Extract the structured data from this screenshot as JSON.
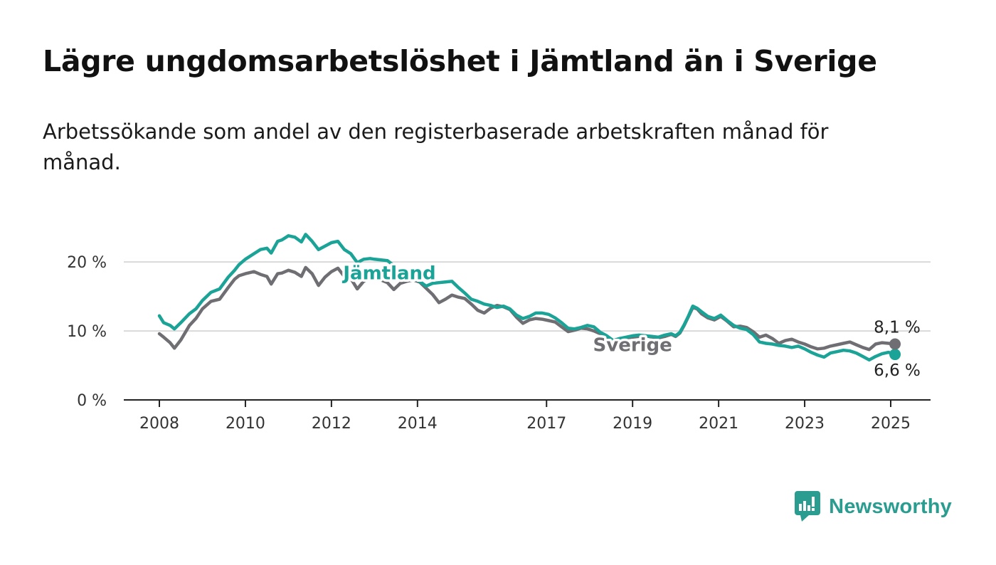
{
  "title": "Lägre ungdomsarbetslöshet i Jämtland än i Sverige",
  "subtitle": "Arbetssökande som andel av den registerbaserade arbetskraften månad för månad.",
  "brand": {
    "name": "Newsworthy",
    "icon": "newsworthy-logo-icon",
    "color": "#2a9d90"
  },
  "colors": {
    "jamtland": "#1aa396",
    "sverige": "#6f6e73",
    "grid": "#d9d9d9",
    "axis": "#222222"
  },
  "chart_data": {
    "type": "line",
    "ylim": [
      0,
      26
    ],
    "xlim": [
      2007.6,
      2025.9
    ],
    "y_ticks": [
      0,
      10,
      20
    ],
    "y_tick_labels": [
      "0 %",
      "10 %",
      "20 %"
    ],
    "x_ticks": [
      2008,
      2010,
      2012,
      2014,
      2017,
      2019,
      2021,
      2023,
      2025
    ],
    "x_tick_labels": [
      "2008",
      "2010",
      "2012",
      "2014",
      "2017",
      "2019",
      "2021",
      "2023",
      "2025"
    ],
    "series": [
      {
        "name": "Jämtland",
        "color": "#1aa396",
        "end_label": "6,6 %",
        "x": [
          2008.0,
          2008.1,
          2008.25,
          2008.35,
          2008.5,
          2008.7,
          2008.85,
          2009.0,
          2009.2,
          2009.4,
          2009.6,
          2009.75,
          2009.85,
          2010.0,
          2010.2,
          2010.35,
          2010.5,
          2010.6,
          2010.75,
          2010.85,
          2011.0,
          2011.15,
          2011.3,
          2011.4,
          2011.55,
          2011.7,
          2011.85,
          2012.0,
          2012.15,
          2012.3,
          2012.45,
          2012.6,
          2012.75,
          2012.9,
          2013.0,
          2013.15,
          2013.3,
          2013.45,
          2013.6,
          2013.75,
          2013.9,
          2014.05,
          2014.2,
          2014.35,
          2014.5,
          2014.65,
          2014.8,
          2014.95,
          2015.1,
          2015.25,
          2015.4,
          2015.55,
          2015.7,
          2015.85,
          2016.0,
          2016.15,
          2016.3,
          2016.45,
          2016.6,
          2016.75,
          2016.9,
          2017.05,
          2017.2,
          2017.35,
          2017.5,
          2017.65,
          2017.8,
          2017.95,
          2018.1,
          2018.25,
          2018.4,
          2018.55,
          2018.7,
          2018.85,
          2019.0,
          2019.15,
          2019.3,
          2019.45,
          2019.6,
          2019.75,
          2019.9,
          2020.0,
          2020.1,
          2020.2,
          2020.3,
          2020.4,
          2020.5,
          2020.6,
          2020.75,
          2020.9,
          2021.05,
          2021.2,
          2021.35,
          2021.5,
          2021.65,
          2021.8,
          2021.95,
          2022.1,
          2022.25,
          2022.4,
          2022.55,
          2022.7,
          2022.85,
          2023.0,
          2023.15,
          2023.3,
          2023.45,
          2023.6,
          2023.75,
          2023.9,
          2024.05,
          2024.2,
          2024.35,
          2024.5,
          2024.65,
          2024.8,
          2024.95,
          2025.1
        ],
        "y": [
          12.2,
          11.2,
          10.8,
          10.3,
          11.2,
          12.5,
          13.2,
          14.4,
          15.6,
          16.1,
          17.8,
          18.8,
          19.6,
          20.4,
          21.2,
          21.8,
          22.0,
          21.3,
          23.0,
          23.2,
          23.8,
          23.6,
          22.9,
          24.0,
          23.0,
          21.8,
          22.3,
          22.8,
          23.0,
          21.8,
          21.2,
          19.9,
          20.4,
          20.5,
          20.4,
          20.3,
          20.2,
          19.5,
          18.4,
          18.0,
          17.6,
          17.2,
          16.5,
          16.9,
          17.0,
          17.1,
          17.2,
          16.3,
          15.5,
          14.6,
          14.3,
          13.9,
          13.7,
          13.4,
          13.6,
          13.2,
          12.3,
          11.8,
          12.1,
          12.6,
          12.6,
          12.4,
          11.9,
          11.2,
          10.4,
          10.3,
          10.5,
          10.8,
          10.6,
          9.8,
          9.3,
          8.6,
          8.9,
          9.1,
          9.3,
          9.4,
          9.3,
          9.2,
          9.1,
          9.4,
          9.6,
          9.3,
          9.8,
          10.9,
          12.2,
          13.6,
          13.3,
          12.8,
          12.1,
          11.8,
          12.3,
          11.5,
          10.8,
          10.4,
          10.2,
          9.5,
          8.4,
          8.2,
          8.1,
          7.9,
          7.8,
          7.6,
          7.8,
          7.4,
          6.9,
          6.5,
          6.2,
          6.8,
          7.0,
          7.2,
          7.1,
          6.8,
          6.3,
          5.8,
          6.3,
          6.7,
          6.9,
          6.6
        ]
      },
      {
        "name": "Sverige",
        "color": "#6f6e73",
        "end_label": "8,1 %",
        "x": [
          2008.0,
          2008.1,
          2008.25,
          2008.35,
          2008.5,
          2008.7,
          2008.85,
          2009.0,
          2009.2,
          2009.4,
          2009.6,
          2009.75,
          2009.85,
          2010.0,
          2010.2,
          2010.35,
          2010.5,
          2010.6,
          2010.75,
          2010.85,
          2011.0,
          2011.15,
          2011.3,
          2011.4,
          2011.55,
          2011.7,
          2011.85,
          2012.0,
          2012.15,
          2012.3,
          2012.45,
          2012.6,
          2012.75,
          2012.9,
          2013.0,
          2013.15,
          2013.3,
          2013.45,
          2013.6,
          2013.75,
          2013.9,
          2014.05,
          2014.2,
          2014.35,
          2014.5,
          2014.65,
          2014.8,
          2014.95,
          2015.1,
          2015.25,
          2015.4,
          2015.55,
          2015.7,
          2015.85,
          2016.0,
          2016.15,
          2016.3,
          2016.45,
          2016.6,
          2016.75,
          2016.9,
          2017.05,
          2017.2,
          2017.35,
          2017.5,
          2017.65,
          2017.8,
          2017.95,
          2018.1,
          2018.25,
          2018.4,
          2018.55,
          2018.7,
          2018.85,
          2019.0,
          2019.15,
          2019.3,
          2019.45,
          2019.6,
          2019.75,
          2019.9,
          2020.0,
          2020.1,
          2020.2,
          2020.3,
          2020.4,
          2020.5,
          2020.6,
          2020.75,
          2020.9,
          2021.05,
          2021.2,
          2021.35,
          2021.5,
          2021.65,
          2021.8,
          2021.95,
          2022.1,
          2022.25,
          2022.4,
          2022.55,
          2022.7,
          2022.85,
          2023.0,
          2023.15,
          2023.3,
          2023.45,
          2023.6,
          2023.75,
          2023.9,
          2024.05,
          2024.2,
          2024.35,
          2024.5,
          2024.65,
          2024.8,
          2024.95,
          2025.1
        ],
        "y": [
          9.6,
          9.1,
          8.3,
          7.5,
          8.7,
          10.8,
          11.8,
          13.2,
          14.3,
          14.6,
          16.3,
          17.5,
          18.0,
          18.3,
          18.6,
          18.2,
          17.9,
          16.8,
          18.3,
          18.4,
          18.8,
          18.5,
          17.9,
          19.2,
          18.3,
          16.6,
          17.8,
          18.6,
          19.1,
          17.9,
          17.6,
          16.1,
          17.2,
          17.7,
          17.6,
          17.4,
          17.0,
          16.0,
          16.9,
          17.2,
          17.4,
          17.1,
          16.2,
          15.3,
          14.1,
          14.6,
          15.2,
          14.9,
          14.7,
          13.9,
          13.0,
          12.6,
          13.3,
          13.7,
          13.5,
          13.1,
          12.0,
          11.1,
          11.6,
          11.8,
          11.7,
          11.5,
          11.3,
          10.6,
          9.9,
          10.1,
          10.4,
          10.3,
          10.0,
          9.6,
          9.1,
          8.6,
          8.8,
          9.0,
          9.1,
          9.2,
          9.3,
          9.1,
          9.0,
          9.2,
          9.5,
          9.2,
          9.7,
          10.8,
          12.1,
          13.4,
          13.2,
          12.5,
          11.9,
          11.6,
          12.1,
          11.4,
          10.6,
          10.7,
          10.5,
          9.9,
          9.1,
          9.4,
          8.9,
          8.2,
          8.6,
          8.8,
          8.4,
          8.1,
          7.7,
          7.4,
          7.5,
          7.8,
          8.0,
          8.2,
          8.4,
          8.0,
          7.6,
          7.3,
          8.1,
          8.3,
          8.2,
          8.1
        ]
      }
    ]
  }
}
